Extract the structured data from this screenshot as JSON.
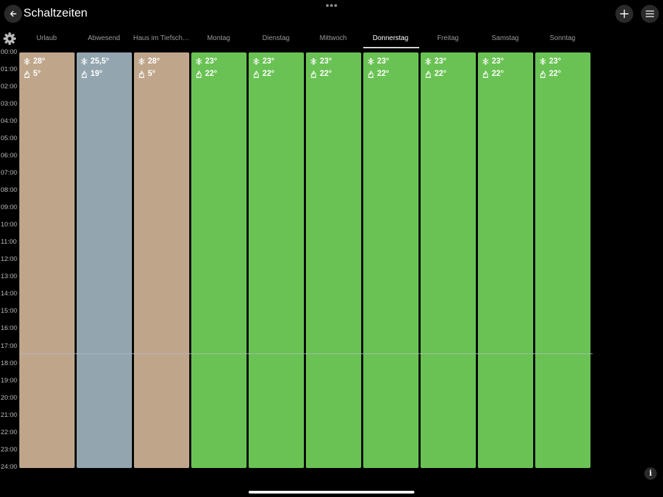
{
  "app": {
    "title": "Schaltzeiten"
  },
  "tabs": [
    {
      "label": "Urlaub",
      "active": false
    },
    {
      "label": "Abwesend",
      "active": false
    },
    {
      "label": "Haus im Tiefsch…",
      "active": false
    },
    {
      "label": "Montag",
      "active": false
    },
    {
      "label": "Dienstag",
      "active": false
    },
    {
      "label": "Mittwoch",
      "active": false
    },
    {
      "label": "Donnerstag",
      "active": true
    },
    {
      "label": "Freitag",
      "active": false
    },
    {
      "label": "Samstag",
      "active": false
    },
    {
      "label": "Sonntag",
      "active": false
    }
  ],
  "times": [
    "00:00",
    "01:00",
    "02:00",
    "03:00",
    "04:00",
    "05:00",
    "06:00",
    "07:00",
    "08:00",
    "09:00",
    "10:00",
    "11:00",
    "12:00",
    "13:00",
    "14:00",
    "15:00",
    "16:00",
    "17:00",
    "18:00",
    "19:00",
    "20:00",
    "21:00",
    "22:00",
    "23:00",
    "24:00"
  ],
  "columns": [
    {
      "cooling": "28°",
      "heating": "5°",
      "color": "#bfa68b"
    },
    {
      "cooling": "25,5°",
      "heating": "19°",
      "color": "#93a5ae"
    },
    {
      "cooling": "28°",
      "heating": "5°",
      "color": "#bfa68b"
    },
    {
      "cooling": "23°",
      "heating": "22°",
      "color": "#69c253"
    },
    {
      "cooling": "23°",
      "heating": "22°",
      "color": "#69c253"
    },
    {
      "cooling": "23°",
      "heating": "22°",
      "color": "#69c253"
    },
    {
      "cooling": "23°",
      "heating": "22°",
      "color": "#69c253"
    },
    {
      "cooling": "23°",
      "heating": "22°",
      "color": "#69c253"
    },
    {
      "cooling": "23°",
      "heating": "22°",
      "color": "#69c253"
    },
    {
      "cooling": "23°",
      "heating": "22°",
      "color": "#69c253"
    }
  ],
  "icons": {
    "back": "back-arrow-icon",
    "add": "plus-icon",
    "menu": "hamburger-menu-icon",
    "settings": "gear-icon",
    "cooling": "snowflake-icon",
    "heating": "flame-icon",
    "info": "info-icon"
  },
  "info_label": "i"
}
